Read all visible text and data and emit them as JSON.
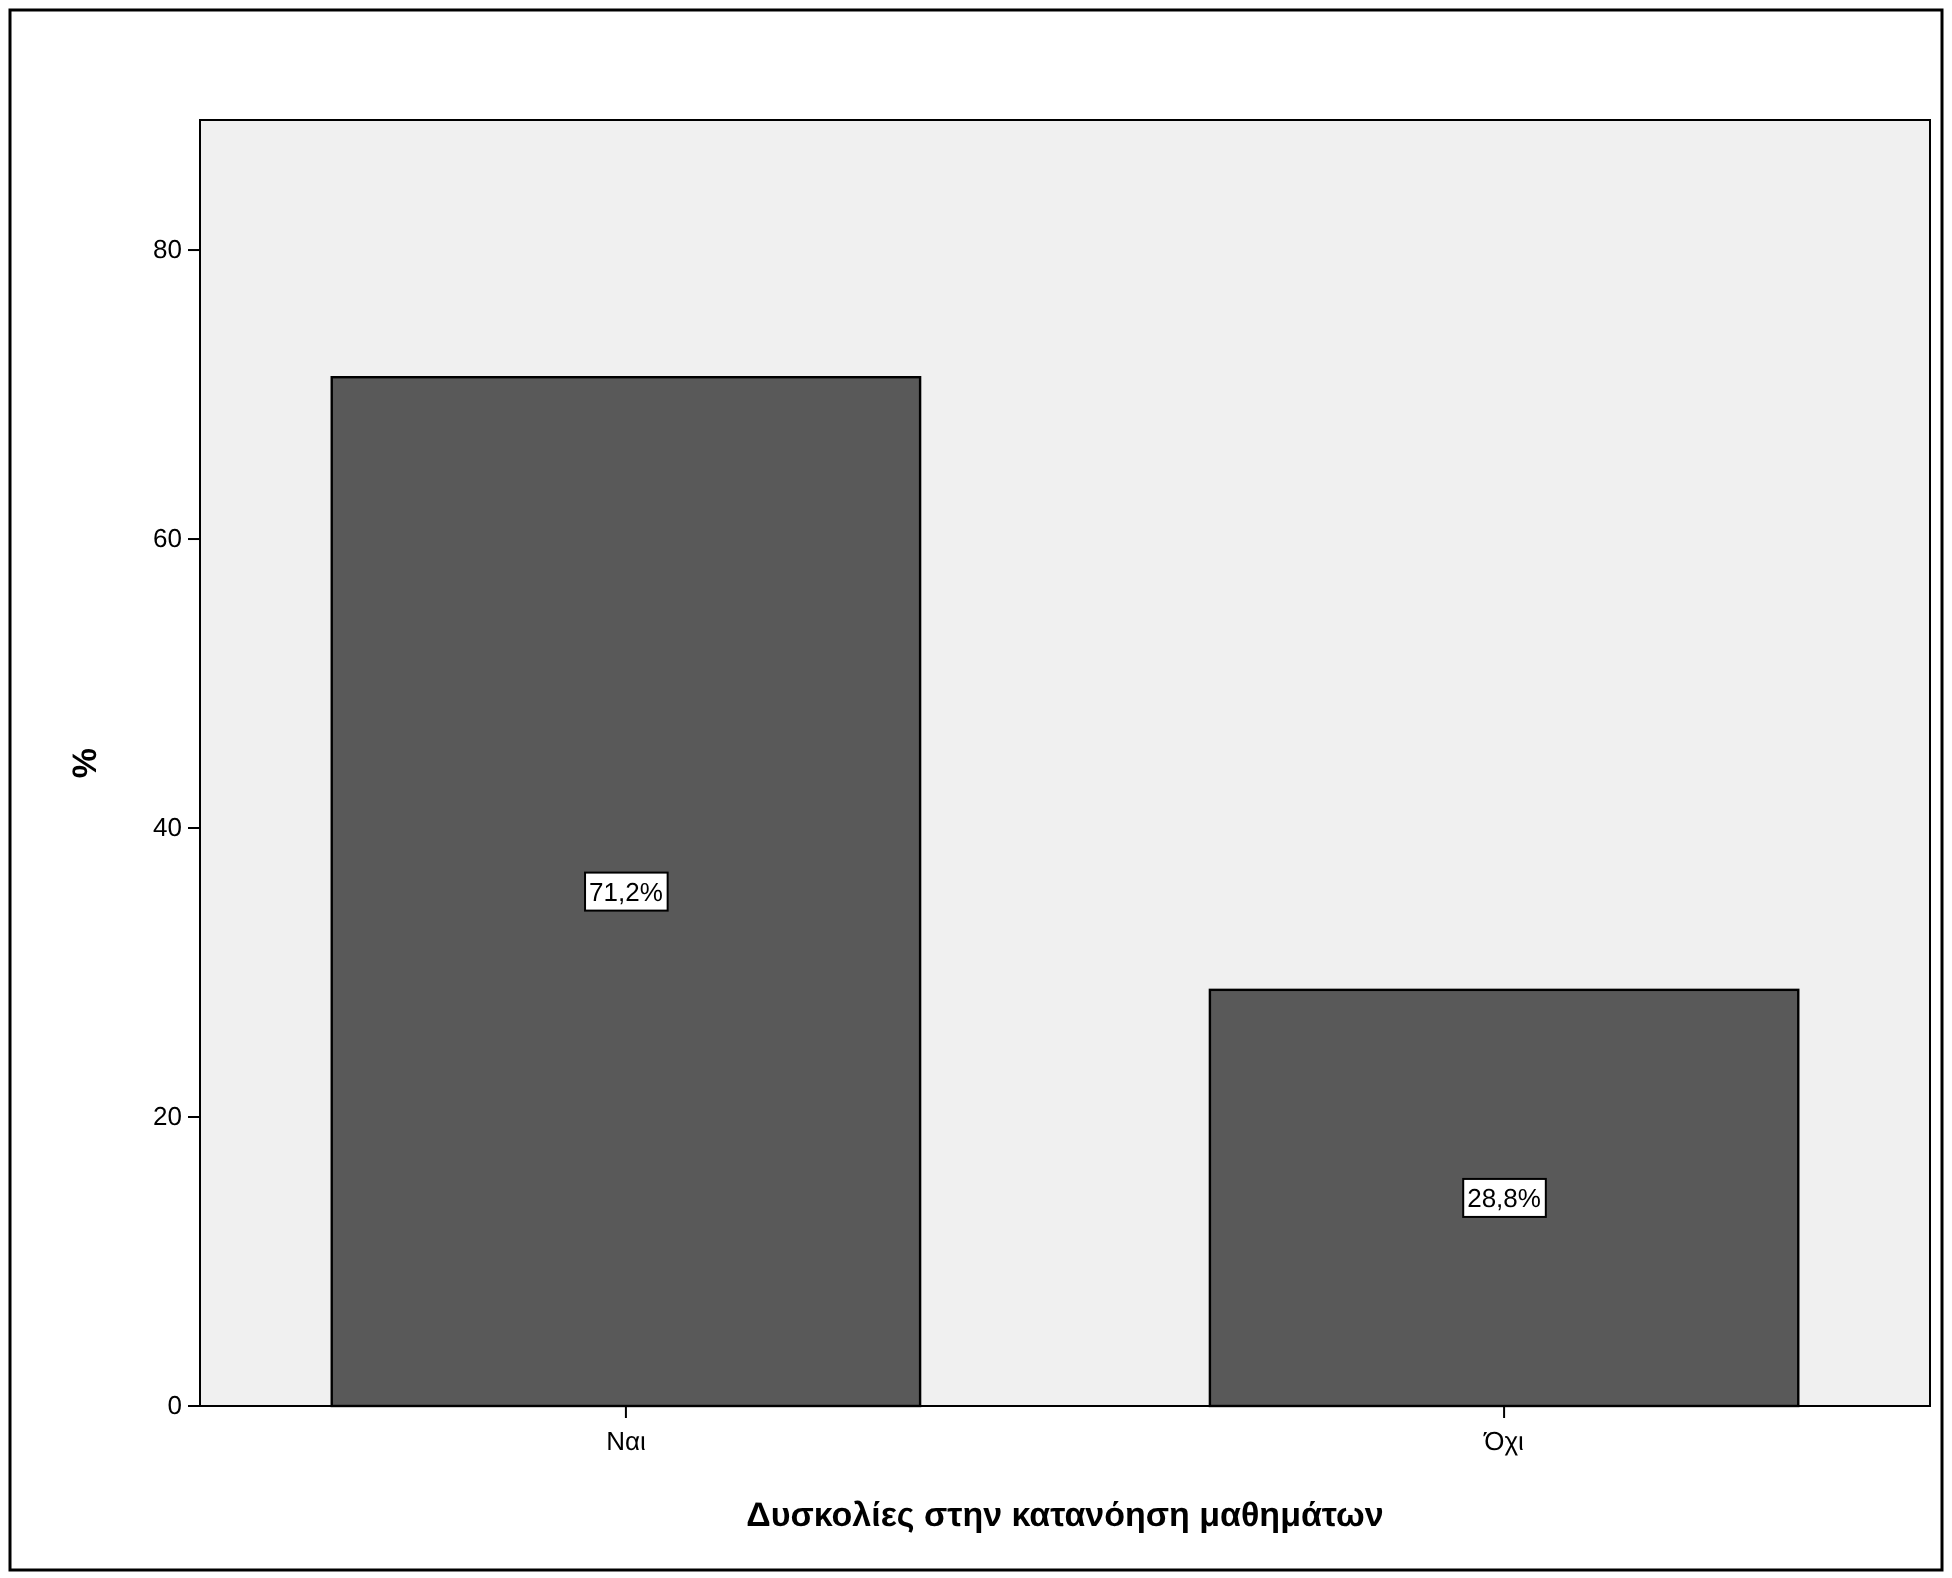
{
  "chart_data": {
    "type": "bar",
    "xlabel": "Δυσκολίες στην κατανόηση μαθημάτων",
    "ylabel": "%",
    "categories": [
      "Ναι",
      "Όχι"
    ],
    "values": [
      71.2,
      28.8
    ],
    "value_labels": [
      "71,2%",
      "28,8%"
    ],
    "color": "#595959",
    "ylim": [
      0,
      89
    ],
    "yticks": [
      0,
      20,
      40,
      60,
      80
    ],
    "grid": false
  }
}
